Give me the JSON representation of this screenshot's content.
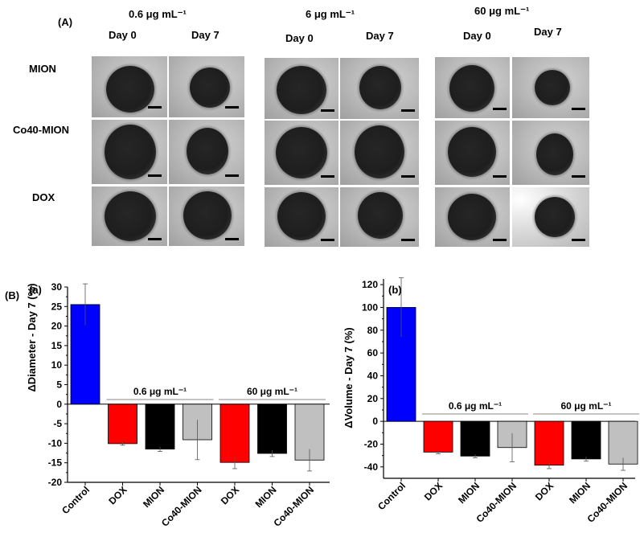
{
  "panel_a": {
    "label": "(A)",
    "concentrations": [
      "0.6 μg mL⁻¹",
      "6 μg mL⁻¹",
      "60 μg mL⁻¹"
    ],
    "days": [
      "Day 0",
      "Day 7"
    ],
    "rows": [
      "MION",
      "Co40-MION",
      "DOX"
    ]
  },
  "panel_b": {
    "label": "(B)"
  },
  "chart_data": [
    {
      "type": "bar",
      "panel": "(a)",
      "title": "",
      "xlabel": "",
      "ylabel": "ΔDiameter - Day 7 (%)",
      "categories": [
        "Control",
        "DOX",
        "MION",
        "Co40-MION",
        "DOX",
        "MION",
        "Co40-MION"
      ],
      "values": [
        25.5,
        -10.1,
        -11.5,
        -9.1,
        -14.9,
        -12.6,
        -14.3
      ],
      "errors": [
        5.3,
        0.4,
        0.6,
        5.1,
        1.6,
        0.8,
        2.8
      ],
      "colors": [
        "#0000ff",
        "#ff0000",
        "#000000",
        "#c0c0c0",
        "#ff0000",
        "#000000",
        "#c0c0c0"
      ],
      "ylim": [
        -20,
        30
      ],
      "yticks": [
        -20,
        -15,
        -10,
        -5,
        0,
        5,
        10,
        15,
        20,
        25,
        30
      ],
      "group_labels": [
        "0.6 μg mL⁻¹",
        "60 μg mL⁻¹"
      ]
    },
    {
      "type": "bar",
      "panel": "(b)",
      "title": "",
      "xlabel": "",
      "ylabel": "ΔVolume - Day 7 (%)",
      "categories": [
        "Control",
        "DOX",
        "MION",
        "Co40-MION",
        "DOX",
        "MION",
        "Co40-MION"
      ],
      "values": [
        100,
        -27,
        -30.5,
        -23,
        -38.5,
        -33,
        -37.5
      ],
      "errors": [
        26,
        1.5,
        1.5,
        12.5,
        3,
        2,
        5.5
      ],
      "colors": [
        "#0000ff",
        "#ff0000",
        "#000000",
        "#c0c0c0",
        "#ff0000",
        "#000000",
        "#c0c0c0"
      ],
      "ylim": [
        -50,
        125
      ],
      "yticks": [
        -40,
        -20,
        0,
        20,
        40,
        60,
        80,
        100,
        120
      ],
      "group_labels": [
        "0.6 μg mL⁻¹",
        "60 μg mL⁻¹"
      ]
    }
  ]
}
